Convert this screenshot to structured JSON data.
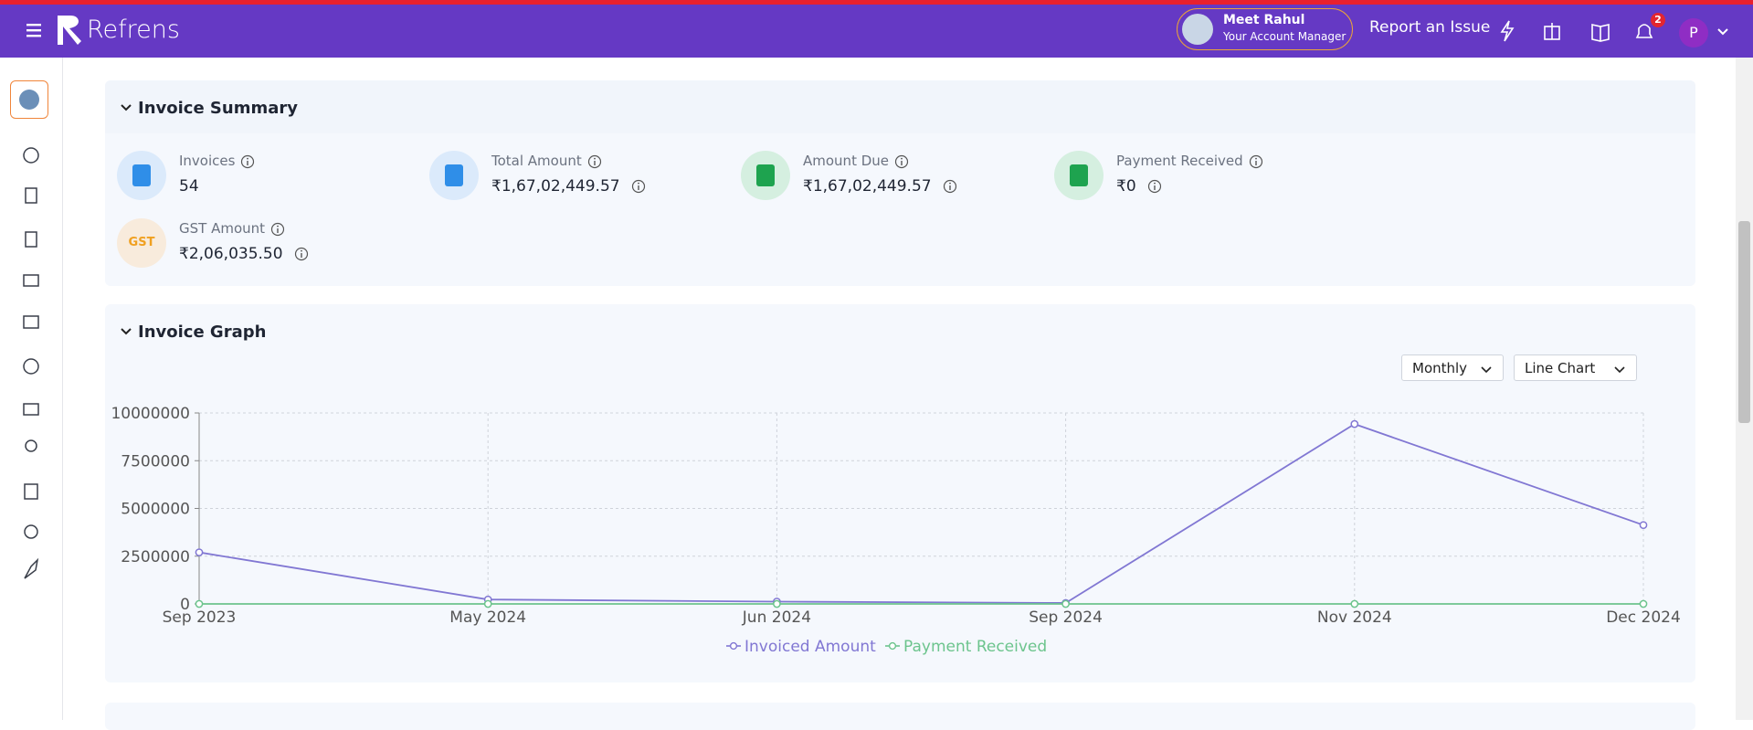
{
  "header": {
    "brand": "Refrens",
    "manager_name": "Meet Rahul",
    "manager_role": "Your Account Manager",
    "report": "Report an Issue",
    "notification_count": "2",
    "avatar": "P"
  },
  "summary": {
    "title": "Invoice Summary",
    "items": [
      {
        "label": "Invoices",
        "value": "54"
      },
      {
        "label": "Total Amount",
        "value": "₹1,67,02,449.57"
      },
      {
        "label": "Amount Due",
        "value": "₹1,67,02,449.57"
      },
      {
        "label": "Payment Received",
        "value": "₹0"
      },
      {
        "label": "GST Amount",
        "value": "₹2,06,035.50",
        "icon": "GST"
      }
    ]
  },
  "graph": {
    "title": "Invoice Graph",
    "period": "Monthly",
    "chart_kind": "Line Chart"
  },
  "chart_data": {
    "type": "line",
    "categories": [
      "Sep 2023",
      "May 2024",
      "Jun 2024",
      "Sep 2024",
      "Nov 2024",
      "Dec 2024"
    ],
    "series": [
      {
        "name": "Invoiced Amount",
        "color": "#8177d3",
        "values": [
          2700000,
          230000,
          120000,
          50000,
          9420000,
          4130000
        ]
      },
      {
        "name": "Payment Received",
        "color": "#6cc48d",
        "values": [
          0,
          0,
          0,
          0,
          0,
          0
        ]
      }
    ],
    "ylim": [
      0,
      10000000
    ],
    "yticks": [
      0,
      2500000,
      5000000,
      7500000,
      10000000
    ],
    "grid": true,
    "legend": "bottom"
  }
}
